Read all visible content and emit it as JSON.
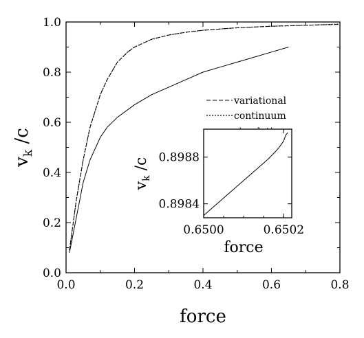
{
  "chart_data": [
    {
      "type": "line",
      "xlabel": "force",
      "ylabel_main": "v",
      "ylabel_sub": "k",
      "ylabel_tail": " /c",
      "xlim": [
        0,
        0.8
      ],
      "ylim": [
        0,
        1.0
      ],
      "x_ticks": [
        "0.0",
        "0.2",
        "0.4",
        "0.6",
        "0.8"
      ],
      "y_ticks": [
        "0.0",
        "0.2",
        "0.4",
        "0.6",
        "0.8",
        "1.0"
      ],
      "grid": false,
      "legend_position": "right",
      "series": [
        {
          "name": "variational",
          "style": "dashed",
          "x": [
            0.01,
            0.02,
            0.03,
            0.05,
            0.07,
            0.1,
            0.12,
            0.15,
            0.18,
            0.2,
            0.25,
            0.3,
            0.35,
            0.4,
            0.45,
            0.5,
            0.55,
            0.6,
            0.65,
            0.7,
            0.75,
            0.8
          ],
          "y": [
            0.09,
            0.19,
            0.29,
            0.45,
            0.58,
            0.71,
            0.77,
            0.84,
            0.88,
            0.9,
            0.931,
            0.948,
            0.959,
            0.967,
            0.972,
            0.977,
            0.98,
            0.983,
            0.985,
            0.987,
            0.989,
            0.99
          ]
        },
        {
          "name": "continuum",
          "style": "dotted",
          "x": [
            0.01,
            0.02,
            0.03,
            0.05,
            0.07,
            0.1,
            0.12,
            0.15,
            0.18,
            0.2,
            0.25,
            0.3,
            0.35,
            0.4,
            0.45,
            0.5,
            0.55,
            0.6,
            0.65,
            0.7,
            0.75,
            0.8
          ],
          "y": [
            0.09,
            0.19,
            0.29,
            0.45,
            0.58,
            0.71,
            0.77,
            0.84,
            0.88,
            0.9,
            0.931,
            0.948,
            0.959,
            0.967,
            0.972,
            0.977,
            0.98,
            0.983,
            0.985,
            0.987,
            0.989,
            0.992
          ]
        },
        {
          "name": "simulation",
          "style": "solid",
          "x": [
            0.01,
            0.02,
            0.03,
            0.05,
            0.07,
            0.1,
            0.12,
            0.15,
            0.2,
            0.25,
            0.3,
            0.35,
            0.4,
            0.45,
            0.5,
            0.55,
            0.6,
            0.65
          ],
          "y": [
            0.08,
            0.15,
            0.22,
            0.36,
            0.45,
            0.54,
            0.58,
            0.62,
            0.67,
            0.71,
            0.74,
            0.77,
            0.8,
            0.82,
            0.84,
            0.86,
            0.88,
            0.9
          ]
        }
      ]
    },
    {
      "type": "line",
      "inset": true,
      "xlabel": "force",
      "ylabel_main": "v",
      "ylabel_sub": "k",
      "ylabel_tail": " /c",
      "xlim": [
        0.65,
        0.65022
      ],
      "ylim": [
        0.89828,
        0.89904
      ],
      "x_ticks": [
        {
          "value": 0.65,
          "label": "0.6500"
        },
        {
          "value": 0.6502,
          "label": "0.6502"
        }
      ],
      "y_ticks": [
        {
          "value": 0.8984,
          "label": "0.8984"
        },
        {
          "value": 0.8988,
          "label": "0.8988"
        }
      ],
      "series": [
        {
          "style": "solid",
          "x": [
            0.65,
            0.65002,
            0.65004,
            0.65006,
            0.65008,
            0.6501,
            0.65012,
            0.65014,
            0.65016,
            0.65018,
            0.65019,
            0.6502,
            0.650205,
            0.65021
          ],
          "y": [
            0.8983,
            0.89836,
            0.89842,
            0.89848,
            0.89854,
            0.8986,
            0.89866,
            0.89872,
            0.89878,
            0.89885,
            0.89889,
            0.89894,
            0.89899,
            0.89901
          ]
        }
      ]
    }
  ]
}
